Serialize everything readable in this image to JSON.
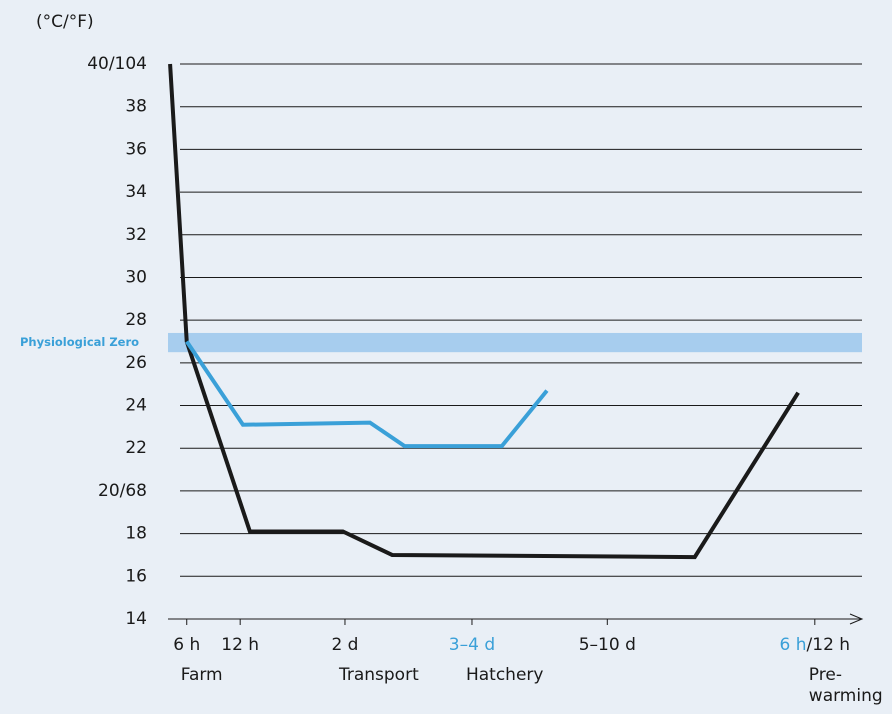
{
  "chart_data": {
    "type": "line",
    "y_unit_label": "(°C/°F)",
    "band": {
      "label": "Physiological Zero",
      "range": [
        26.5,
        27.4
      ],
      "color": "#a7cdee",
      "label_color": "#3aa0d8"
    },
    "xlim": [
      0,
      100
    ],
    "ylim": [
      14,
      40
    ],
    "yticks": [
      14,
      16,
      18,
      {
        "value": 20,
        "label": "20/68"
      },
      22,
      24,
      26,
      28,
      30,
      32,
      34,
      36,
      38,
      {
        "value": 40,
        "label": "40/104"
      }
    ],
    "grid": true,
    "xticks": [
      {
        "value": 2.7,
        "label": "6 h",
        "sublabel": [
          "Farm"
        ]
      },
      {
        "value": 10.4,
        "label": "12 h"
      },
      {
        "value": 25.5,
        "label": "2 d",
        "sublabel": [
          "Transport"
        ]
      },
      {
        "value": 43.8,
        "label": "3–4 d",
        "label_color": "#3aa0d8",
        "sublabel": [
          "Hatchery"
        ]
      },
      {
        "value": 63.3,
        "label": "5–10 d"
      },
      {
        "value": 93.2,
        "label": "6 h",
        "label_color": "#3aa0d8",
        "label_suffix": "/12 h",
        "sublabel": [
          "Pre-",
          "warming"
        ]
      }
    ],
    "series": [
      {
        "color": "#1a1a1a",
        "x": [
          0.3,
          2.7,
          11.8,
          25.2,
          32.3,
          75.9,
          90.8
        ],
        "values": [
          40,
          27,
          18.1,
          18.1,
          17.0,
          16.9,
          24.6
        ]
      },
      {
        "color": "#3aa0d8",
        "x": [
          2.7,
          10.8,
          29.1,
          34.1,
          48.1,
          54.6
        ],
        "values": [
          27.0,
          23.1,
          23.2,
          22.1,
          22.1,
          24.7
        ]
      }
    ]
  }
}
